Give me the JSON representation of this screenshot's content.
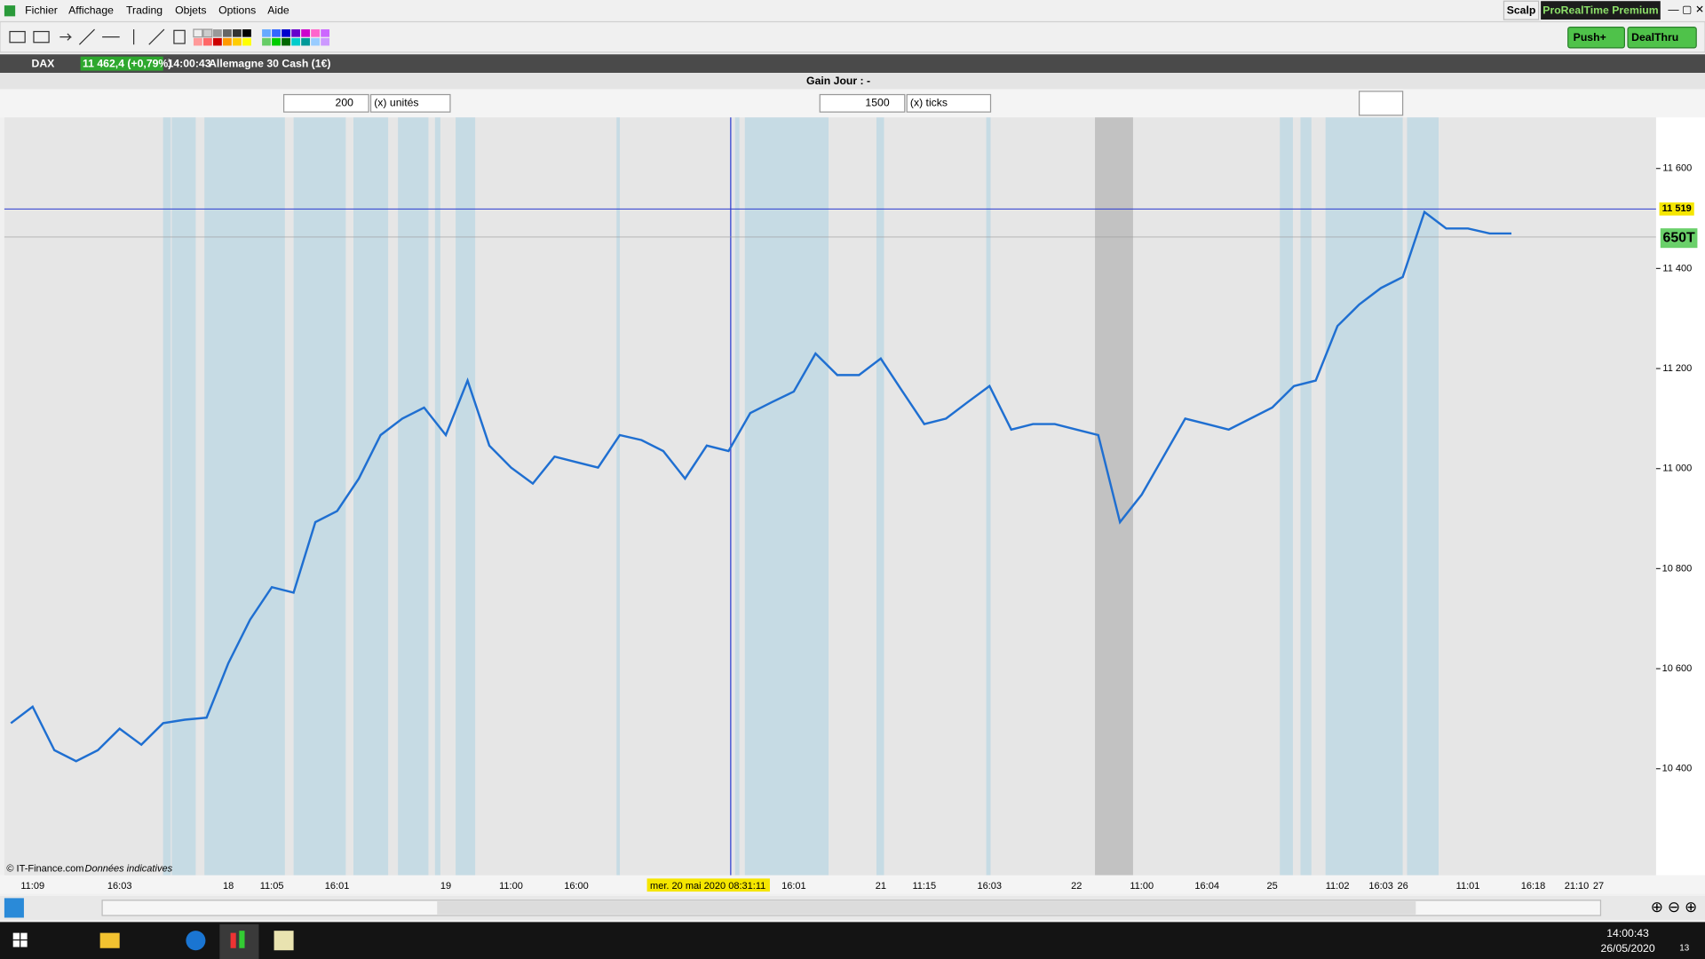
{
  "menu": [
    "Fichier",
    "Affichage",
    "Trading",
    "Objets",
    "Options",
    "Aide"
  ],
  "toolbar_right": {
    "workspace": "Scalp",
    "product": "ProRealTime Premium"
  },
  "buttons": [
    "Push+",
    "DealThru"
  ],
  "ticker": {
    "symbol": "DAX",
    "quote": "11 462,4 (+0,79%)",
    "time": "14:00:43",
    "name": "Allemagne 30 Cash (1€)"
  },
  "gain_bar": "Gain Jour : -",
  "controls": [
    {
      "value": "200",
      "unit": "(x) unités"
    },
    {
      "value": "1500",
      "unit": "(x) ticks"
    }
  ],
  "chart_data": {
    "type": "line",
    "color": "#1f6fd1",
    "categories": [
      null,
      "11:09",
      null,
      null,
      null,
      "16:03",
      null,
      null,
      null,
      null,
      "18",
      null,
      "11:05",
      null,
      null,
      "16:01",
      null,
      null,
      null,
      null,
      "19",
      null,
      null,
      "11:00",
      null,
      null,
      "16:00",
      null,
      null,
      null,
      null,
      null,
      null,
      null,
      null,
      null,
      "16:01",
      null,
      null,
      null,
      "21",
      null,
      "11:15",
      null,
      null,
      "16:03",
      null,
      null,
      null,
      "22",
      null,
      null,
      "11:00",
      null,
      null,
      "16:04",
      null,
      null,
      "25",
      null,
      null,
      "11:02",
      null,
      "16:03",
      "26",
      null,
      null,
      "11:01",
      null,
      null,
      "16:18",
      null,
      "21:10",
      "27",
      null,
      null
    ],
    "values": [
      10491,
      10524,
      10437,
      10415,
      10437,
      10480,
      10448,
      10491,
      10498,
      10502,
      10611,
      10698,
      10763,
      10752,
      10893,
      10915,
      10980,
      11067,
      11100,
      11122,
      11067,
      11176,
      11046,
      11002,
      10970,
      11024,
      11013,
      11002,
      11067,
      11057,
      11035,
      10980,
      11046,
      11035,
      11111,
      11133,
      11154,
      11230,
      11187,
      11187,
      11220,
      11154,
      11089,
      11100,
      11133,
      11165,
      11078,
      11089,
      11089,
      11078,
      11067,
      10893,
      10948,
      11024,
      11100,
      11089,
      11078,
      11100,
      11122,
      11165,
      11176,
      11285,
      11328,
      11361,
      11383,
      11513,
      11480,
      11480,
      11470,
      11470,
      null,
      null,
      null,
      null,
      null,
      null
    ],
    "ylim": [
      10187,
      11702
    ],
    "yticks": [
      {
        "value": 10400,
        "label": "10 400"
      },
      {
        "value": 10600,
        "label": "10 600"
      },
      {
        "value": 10800,
        "label": "10 800"
      },
      {
        "value": 11000,
        "label": "11 000"
      },
      {
        "value": 11200,
        "label": "11 200"
      },
      {
        "value": 11400,
        "label": "11 400"
      },
      {
        "value": 11600,
        "label": "11 600"
      }
    ],
    "price_line": {
      "value": 11519,
      "label": "11 519"
    },
    "period_label": "650T",
    "crosshair_label": "mer. 20 mai 2020 08:31:11",
    "copyright": "© IT-Finance.com",
    "source_note": "Données indicatives"
  },
  "taskbar": {
    "time": "14:00:43",
    "date": "26/05/2020",
    "notifications": "13"
  }
}
